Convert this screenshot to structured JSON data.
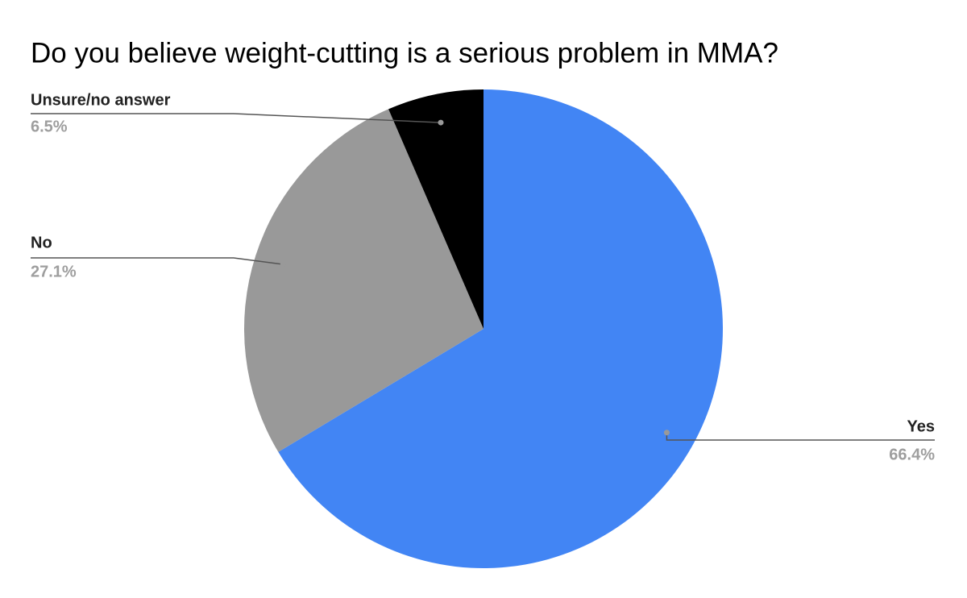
{
  "chart_data": {
    "type": "pie",
    "title": "Do you believe weight-cutting is a serious problem in MMA?",
    "categories": [
      "Yes",
      "No",
      "Unsure/no answer"
    ],
    "values": [
      66.4,
      27.1,
      6.5
    ],
    "value_labels": [
      "66.4%",
      "27.1%",
      "6.5%"
    ],
    "colors": [
      "#4285f4",
      "#999999",
      "#000000"
    ]
  }
}
